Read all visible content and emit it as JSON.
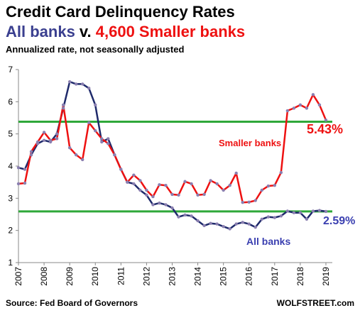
{
  "header": {
    "title": "Credit Card Delinquency Rates",
    "subtitle_all": "All banks",
    "subtitle_v": " v. ",
    "subtitle_smaller": "4,600 Smaller banks",
    "note": "Annualized rate, not seasonally adjusted"
  },
  "footer": {
    "source": "Source: Fed Board of Governors",
    "brand": "WOLFSTREET.com"
  },
  "colors": {
    "smaller": "#ee1111",
    "all": "#1f2a6b",
    "marker": "#8a7fb0",
    "hline": "#2fa83a",
    "all_label": "#3a3fb0"
  },
  "chart_data": {
    "type": "line",
    "xlabel": "",
    "ylabel": "",
    "ylim": [
      1,
      7
    ],
    "xlim": [
      2007,
      2019.25
    ],
    "yticks": [
      "1",
      "2",
      "3",
      "4",
      "5",
      "6",
      "7"
    ],
    "xticks": [
      "2007",
      "2008",
      "2009",
      "2010",
      "2011",
      "2012",
      "2013",
      "2014",
      "2015",
      "2016",
      "2017",
      "2018",
      "2019"
    ],
    "grid": false,
    "x": [
      2007.0,
      2007.25,
      2007.5,
      2007.75,
      2008.0,
      2008.25,
      2008.5,
      2008.75,
      2009.0,
      2009.25,
      2009.5,
      2009.75,
      2010.0,
      2010.25,
      2010.5,
      2010.75,
      2011.0,
      2011.25,
      2011.5,
      2011.75,
      2012.0,
      2012.25,
      2012.5,
      2012.75,
      2013.0,
      2013.25,
      2013.5,
      2013.75,
      2014.0,
      2014.25,
      2014.5,
      2014.75,
      2015.0,
      2015.25,
      2015.5,
      2015.75,
      2016.0,
      2016.25,
      2016.5,
      2016.75,
      2017.0,
      2017.25,
      2017.5,
      2017.75,
      2018.0,
      2018.25,
      2018.5,
      2018.75,
      2019.0
    ],
    "series": [
      {
        "name": "Smaller banks",
        "values": [
          3.45,
          3.47,
          4.45,
          4.75,
          5.05,
          4.8,
          4.85,
          5.9,
          4.57,
          4.35,
          4.2,
          5.35,
          5.1,
          4.85,
          4.7,
          4.35,
          3.9,
          3.5,
          3.72,
          3.55,
          3.25,
          3.05,
          3.42,
          3.4,
          3.12,
          3.1,
          3.52,
          3.45,
          3.1,
          3.12,
          3.55,
          3.45,
          3.25,
          3.4,
          3.78,
          2.87,
          2.88,
          2.93,
          3.25,
          3.38,
          3.4,
          3.8,
          5.72,
          5.8,
          5.9,
          5.8,
          6.22,
          5.9,
          5.43
        ]
      },
      {
        "name": "All banks",
        "values": [
          3.95,
          3.9,
          4.35,
          4.7,
          4.8,
          4.75,
          5.0,
          5.8,
          6.62,
          6.55,
          6.55,
          6.42,
          5.9,
          4.75,
          4.85,
          4.35,
          3.9,
          3.5,
          3.45,
          3.25,
          3.1,
          2.8,
          2.85,
          2.8,
          2.7,
          2.42,
          2.48,
          2.45,
          2.3,
          2.15,
          2.22,
          2.2,
          2.12,
          2.05,
          2.2,
          2.25,
          2.2,
          2.1,
          2.35,
          2.42,
          2.4,
          2.45,
          2.6,
          2.55,
          2.55,
          2.35,
          2.6,
          2.62,
          2.59
        ]
      }
    ],
    "reference_lines": [
      5.38,
      2.59
    ],
    "annotations": {
      "smaller_label": "Smaller banks",
      "all_label": "All banks",
      "smaller_last": "5.43%",
      "all_last": "2.59%"
    }
  }
}
